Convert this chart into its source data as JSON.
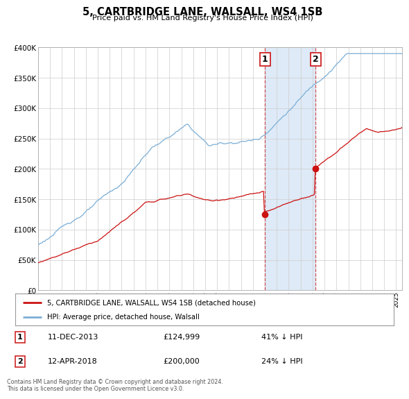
{
  "title": "5, CARTBRIDGE LANE, WALSALL, WS4 1SB",
  "subtitle": "Price paid vs. HM Land Registry's House Price Index (HPI)",
  "hpi_color": "#7aaed6",
  "price_color": "#cc1111",
  "marker1_date": 2014.0,
  "marker1_price": 124999,
  "marker2_date": 2018.25,
  "marker2_price": 200000,
  "legend1": "5, CARTBRIDGE LANE, WALSALL, WS4 1SB (detached house)",
  "legend2": "HPI: Average price, detached house, Walsall",
  "footnote": "Contains HM Land Registry data © Crown copyright and database right 2024.\nThis data is licensed under the Open Government Licence v3.0.",
  "ylim": [
    0,
    400000
  ],
  "xlim_start": 1995.0,
  "xlim_end": 2025.5,
  "background_color": "#ffffff",
  "grid_color": "#cccccc",
  "shade_color": "#deeaf7"
}
